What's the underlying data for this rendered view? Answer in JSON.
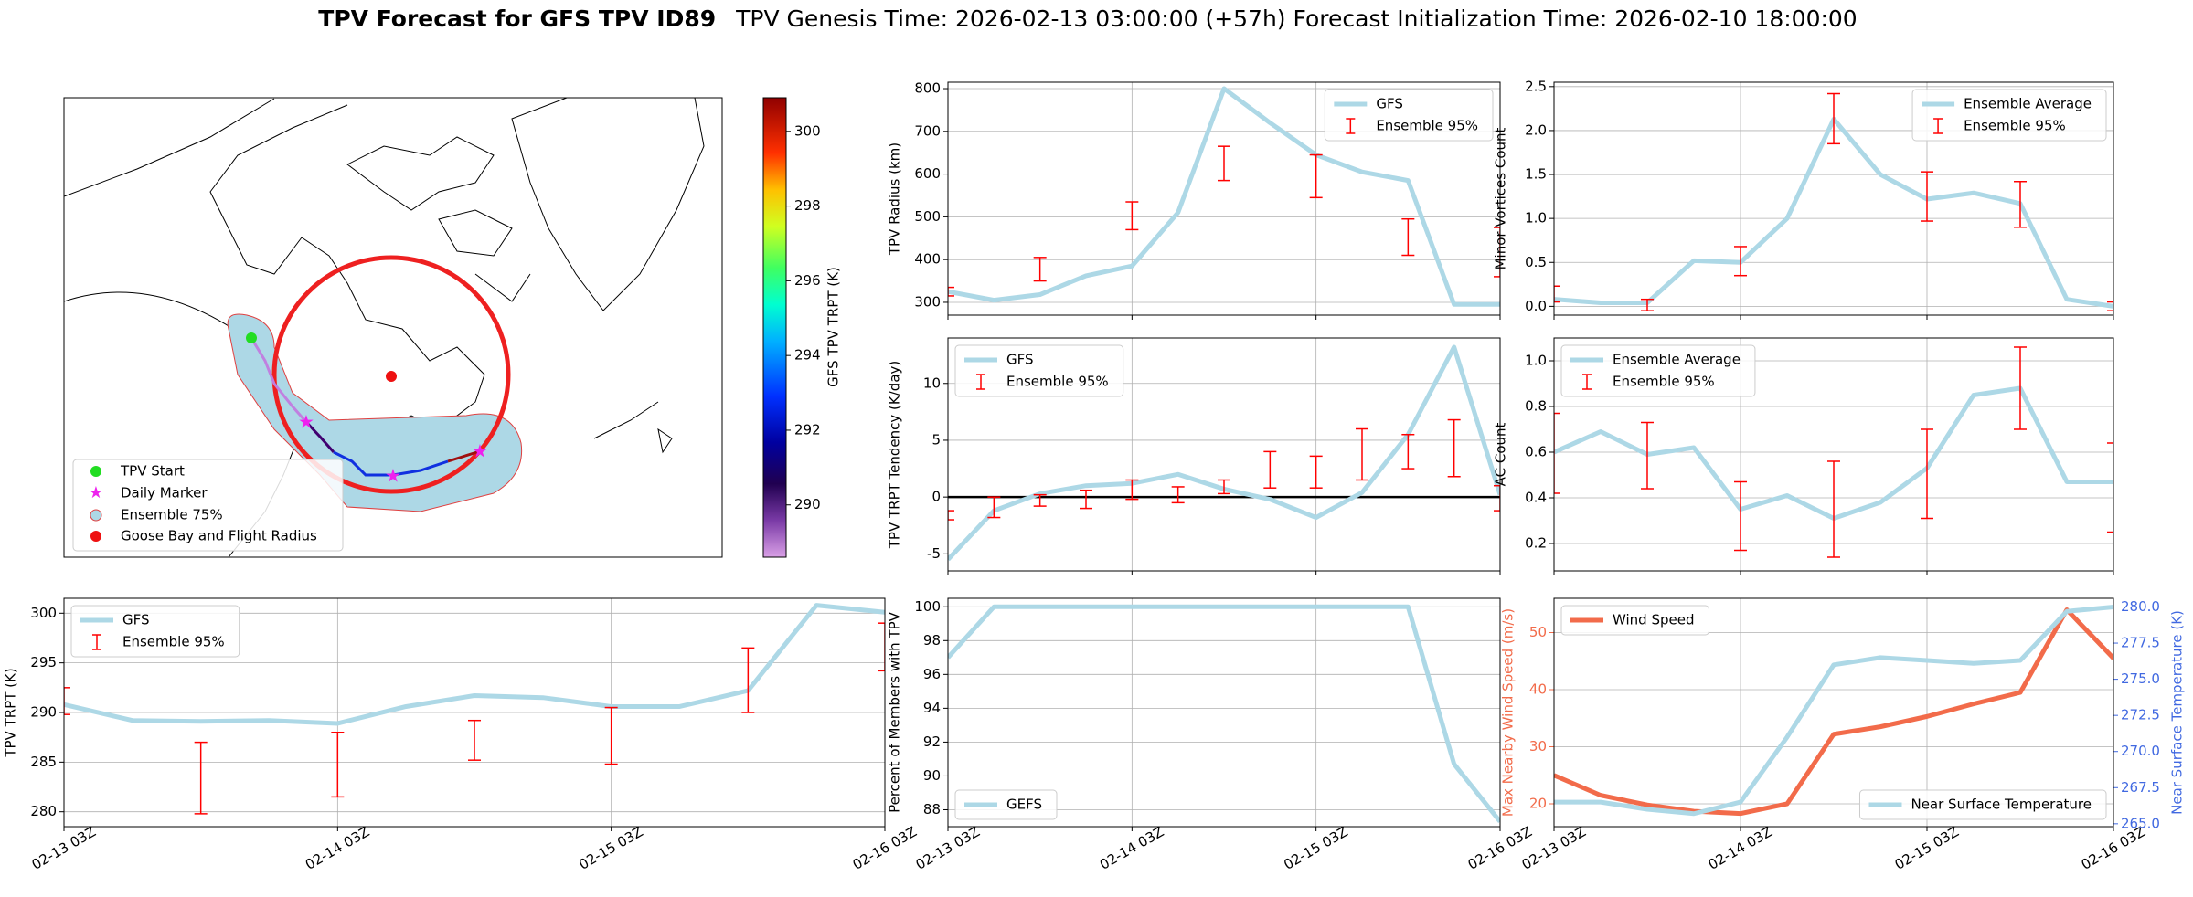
{
  "title": "TPV Forecast for GFS TPV ID89",
  "subtitle": "TPV Genesis Time: 2026-02-13 03:00:00 (+57h)   Forecast Initialization Time: 2026-02-10 18:00:00",
  "chart_data": [
    {
      "type": "map",
      "legend": [
        "TPV Start",
        "Daily Marker",
        "Ensemble 75%",
        "Goose Bay and Flight Radius"
      ],
      "colorbar": {
        "label": "GFS TPV TRPT (K)",
        "lim": [
          288.6,
          300.9
        ],
        "ticks": [
          290,
          292,
          294,
          296,
          298,
          300
        ]
      }
    },
    {
      "type": "line",
      "ylabel": "TPV Radius (km)",
      "xlim": [
        0,
        72
      ],
      "xticks": [
        0,
        24,
        48,
        72
      ],
      "ylim": [
        270,
        815
      ],
      "yticks": [
        300,
        400,
        500,
        600,
        700,
        800
      ],
      "grid": true,
      "legend": "upper right",
      "x": [
        0,
        6,
        12,
        18,
        24,
        30,
        36,
        42,
        48,
        54,
        60,
        66,
        72
      ],
      "series": [
        {
          "name": "GFS",
          "color": "#add8e6",
          "values": [
            325,
            305,
            318,
            362,
            385,
            510,
            800,
            720,
            645,
            605,
            585,
            295,
            295
          ]
        }
      ],
      "error_bars": {
        "name": "Ensemble 95%",
        "color": "#ff0000",
        "x": [
          0,
          12,
          24,
          36,
          48,
          60,
          72
        ],
        "low": [
          315,
          350,
          470,
          585,
          545,
          410,
          360
        ],
        "high": [
          335,
          405,
          535,
          665,
          645,
          495,
          475
        ]
      }
    },
    {
      "type": "line",
      "ylabel": "Minor Vortices Count",
      "xlim": [
        0,
        72
      ],
      "xticks": [
        0,
        24,
        48,
        72
      ],
      "ylim": [
        -0.1,
        2.55
      ],
      "yticks": [
        {
          "value": 0,
          "label": "0.0"
        },
        0.5,
        {
          "value": 1,
          "label": "1.0"
        },
        1.5,
        {
          "value": 2,
          "label": "2.0"
        },
        2.5
      ],
      "grid": true,
      "legend": "upper right",
      "x": [
        0,
        6,
        12,
        18,
        24,
        30,
        36,
        42,
        48,
        54,
        60,
        66,
        72
      ],
      "series": [
        {
          "name": "Ensemble Average",
          "color": "#add8e6",
          "values": [
            0.08,
            0.04,
            0.04,
            0.52,
            0.5,
            1.0,
            2.13,
            1.5,
            1.22,
            1.29,
            1.17,
            0.08,
            0.0
          ]
        }
      ],
      "error_bars": {
        "name": "Ensemble 95%",
        "color": "#ff0000",
        "x": [
          0,
          12,
          24,
          36,
          48,
          60,
          72
        ],
        "low": [
          0.05,
          -0.05,
          0.35,
          1.85,
          0.97,
          0.9,
          -0.05
        ],
        "high": [
          0.23,
          0.08,
          0.68,
          2.42,
          1.53,
          1.42,
          0.05
        ]
      }
    },
    {
      "type": "line",
      "ylabel": "TPV TRPT Tendency (K/day)",
      "xlim": [
        0,
        72
      ],
      "xticks": [
        0,
        24,
        48,
        72
      ],
      "ylim": [
        -6.5,
        14
      ],
      "yticks": [
        -5,
        0,
        5,
        10
      ],
      "grid": true,
      "legend": "upper left",
      "hline": 0,
      "x": [
        0,
        6,
        12,
        18,
        24,
        30,
        36,
        42,
        48,
        54,
        60,
        66,
        72
      ],
      "series": [
        {
          "name": "GFS",
          "color": "#add8e6",
          "values": [
            -5.5,
            -1.2,
            0.3,
            1.0,
            1.2,
            2.0,
            0.7,
            -0.2,
            -1.8,
            0.4,
            5.5,
            13.2,
            0.2
          ]
        }
      ],
      "error_bars": {
        "name": "Ensemble 95%",
        "color": "#ff0000",
        "x": [
          0,
          6,
          12,
          18,
          24,
          30,
          36,
          42,
          48,
          54,
          60,
          66,
          72
        ],
        "low": [
          -2,
          -1.8,
          -0.8,
          -1,
          -0.2,
          -0.5,
          0.3,
          0.8,
          0.8,
          1.5,
          2.5,
          1.8,
          -1.2
        ],
        "high": [
          -1.2,
          0,
          0.2,
          0.6,
          1.5,
          0.9,
          1.5,
          4,
          3.6,
          6,
          5.5,
          6.8,
          1
        ]
      }
    },
    {
      "type": "line",
      "ylabel": "AC Count",
      "xlim": [
        0,
        72
      ],
      "xticks": [
        0,
        24,
        48,
        72
      ],
      "ylim": [
        0.08,
        1.1
      ],
      "yticks": [
        0.2,
        0.4,
        0.6,
        0.8,
        {
          "value": 1,
          "label": "1.0"
        }
      ],
      "grid": true,
      "legend": "upper left",
      "x": [
        0,
        6,
        12,
        18,
        24,
        30,
        36,
        42,
        48,
        54,
        60,
        66,
        72
      ],
      "series": [
        {
          "name": "Ensemble Average",
          "color": "#add8e6",
          "values": [
            0.6,
            0.69,
            0.59,
            0.62,
            0.35,
            0.41,
            0.31,
            0.38,
            0.53,
            0.85,
            0.88,
            0.47,
            0.47
          ]
        }
      ],
      "error_bars": {
        "name": "Ensemble 95%",
        "color": "#ff0000",
        "x": [
          0,
          12,
          24,
          36,
          48,
          60,
          72
        ],
        "low": [
          0.42,
          0.44,
          0.17,
          0.14,
          0.31,
          0.7,
          0.25
        ],
        "high": [
          0.77,
          0.73,
          0.47,
          0.56,
          0.7,
          1.06,
          0.64
        ]
      }
    },
    {
      "type": "line",
      "ylabel": "TPV TRPT (K)",
      "xlim": [
        0,
        72
      ],
      "xticks": [
        {
          "value": 0,
          "label": "02-13 03Z"
        },
        {
          "value": 24,
          "label": "02-14 03Z"
        },
        {
          "value": 48,
          "label": "02-15 03Z"
        },
        {
          "value": 72,
          "label": "02-16 03Z"
        }
      ],
      "ylim": [
        278.5,
        301.5
      ],
      "yticks": [
        280,
        285,
        290,
        295,
        300
      ],
      "grid": true,
      "legend": "upper left",
      "x": [
        0,
        6,
        12,
        18,
        24,
        30,
        36,
        42,
        48,
        54,
        60,
        66,
        72
      ],
      "series": [
        {
          "name": "GFS",
          "color": "#add8e6",
          "values": [
            290.8,
            289.2,
            289.1,
            289.2,
            288.9,
            290.6,
            291.7,
            291.5,
            290.6,
            290.6,
            292.2,
            300.8,
            300.1
          ]
        }
      ],
      "error_bars": {
        "name": "Ensemble 95%",
        "color": "#ff0000",
        "x": [
          0,
          12,
          24,
          36,
          48,
          60,
          72
        ],
        "low": [
          289.8,
          279.8,
          281.5,
          285.2,
          284.8,
          290,
          294.2
        ],
        "high": [
          292.5,
          287,
          288,
          289.2,
          290.5,
          296.5,
          299
        ]
      }
    },
    {
      "type": "line",
      "ylabel": "Percent of Members with TPV",
      "xlim": [
        0,
        72
      ],
      "xticks": [
        {
          "value": 0,
          "label": "02-13 03Z"
        },
        {
          "value": 24,
          "label": "02-14 03Z"
        },
        {
          "value": 48,
          "label": "02-15 03Z"
        },
        {
          "value": 72,
          "label": "02-16 03Z"
        }
      ],
      "ylim": [
        87,
        100.5
      ],
      "yticks": [
        88,
        90,
        92,
        94,
        96,
        98,
        100
      ],
      "grid": true,
      "legend": "lower left",
      "x": [
        0,
        6,
        12,
        18,
        24,
        30,
        36,
        42,
        48,
        54,
        60,
        66,
        72
      ],
      "series": [
        {
          "name": "GEFS",
          "color": "#add8e6",
          "values": [
            97,
            100,
            100,
            100,
            100,
            100,
            100,
            100,
            100,
            100,
            100,
            90.7,
            87.3
          ]
        }
      ]
    },
    {
      "type": "line",
      "ylabel": "Max Nearby Wind Speed (m/s)",
      "ylabel_color": "#f26b4a",
      "y2label": "Near Surface Temperature (K)",
      "y2label_color": "#4169e1",
      "xlim": [
        0,
        72
      ],
      "xticks": [
        {
          "value": 0,
          "label": "02-13 03Z"
        },
        {
          "value": 24,
          "label": "02-14 03Z"
        },
        {
          "value": 48,
          "label": "02-15 03Z"
        },
        {
          "value": 72,
          "label": "02-16 03Z"
        }
      ],
      "ylim": [
        16,
        56
      ],
      "yticks": [
        20,
        30,
        40,
        50
      ],
      "y2lim": [
        264.8,
        280.6
      ],
      "y2ticks": [
        {
          "value": 265,
          "label": "265.0"
        },
        267.5,
        {
          "value": 270,
          "label": "270.0"
        },
        272.5,
        {
          "value": 275,
          "label": "275.0"
        },
        277.5,
        {
          "value": 280,
          "label": "280.0"
        }
      ],
      "grid": true,
      "legend": "upper left",
      "x": [
        0,
        6,
        12,
        18,
        24,
        30,
        36,
        42,
        48,
        54,
        60,
        66,
        72
      ],
      "series": [
        {
          "name": "Wind Speed",
          "color": "#f26b4a",
          "values": [
            25,
            21.5,
            19.8,
            18.7,
            18.3,
            20,
            32.2,
            33.5,
            35.3,
            37.5,
            39.5,
            54,
            45.5
          ]
        },
        {
          "name": "Near Surface Temperature",
          "color": "#add8e6",
          "axis": "y2",
          "legend": "lower right",
          "values": [
            266.5,
            266.5,
            266,
            265.7,
            266.5,
            271,
            276,
            276.5,
            276.3,
            276.1,
            276.3,
            279.7,
            280
          ]
        }
      ]
    }
  ]
}
